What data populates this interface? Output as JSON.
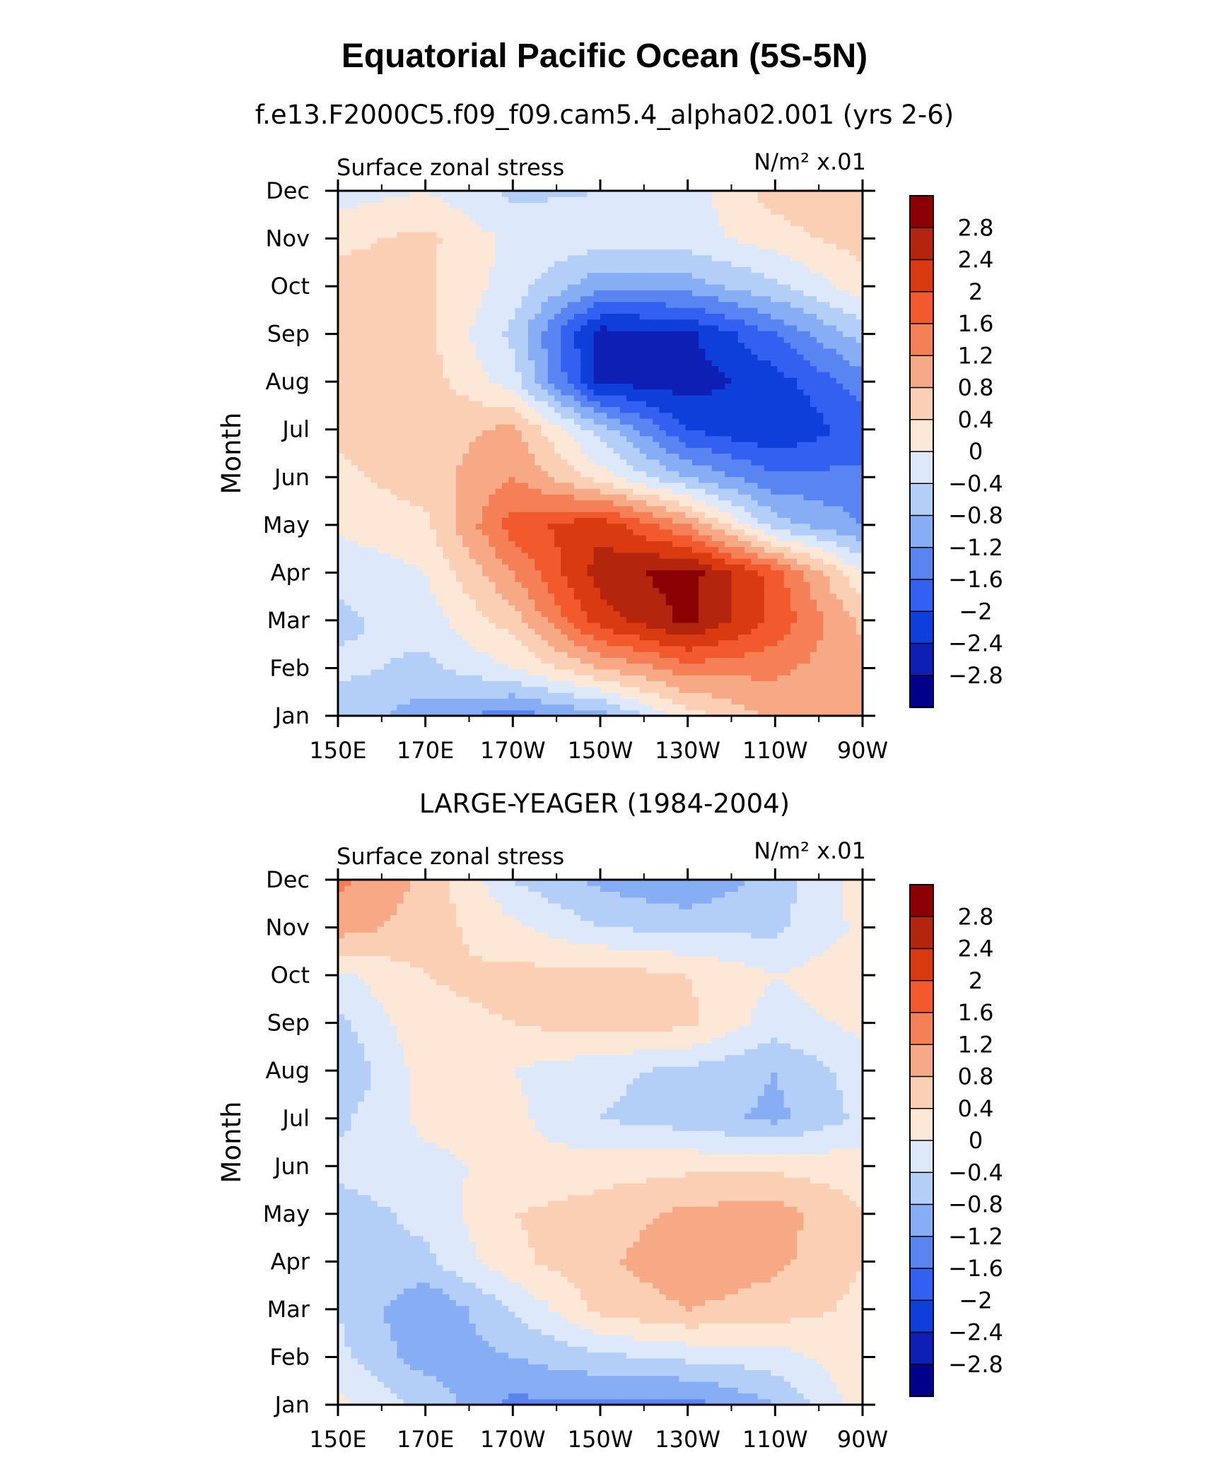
{
  "title": "Equatorial Pacific Ocean (5S-5N)",
  "colors": [
    "#00008b",
    "#0e1fb3",
    "#0f3fd9",
    "#3360f0",
    "#5985f2",
    "#87aef5",
    "#b3cef7",
    "#dde9fb",
    "#fde8d8",
    "#fbcfb3",
    "#f7a985",
    "#f58056",
    "#f2592d",
    "#d93a0f",
    "#b3250d",
    "#8b0000"
  ],
  "levels": [
    -2.8,
    -2.4,
    -2,
    -1.6,
    -1.2,
    -0.8,
    -0.4,
    0,
    0.4,
    0.8,
    1.2,
    1.6,
    2,
    2.4,
    2.8
  ],
  "chart_data": [
    {
      "type": "heatmap",
      "subtitle": "f.e13.F2000C5.f09_f09.cam5.4_alpha02.001 (yrs 2-6)",
      "left_label": "Surface zonal stress",
      "right_label": "N/m² x.01",
      "ylabel": "Month",
      "x_ticks": [
        "150E",
        "170E",
        "170W",
        "150W",
        "130W",
        "110W",
        "90W"
      ],
      "y_ticks": [
        "Jan",
        "Feb",
        "Mar",
        "Apr",
        "May",
        "Jun",
        "Jul",
        "Aug",
        "Sep",
        "Oct",
        "Nov",
        "Dec"
      ],
      "colorbar_labels": [
        "2.8",
        "2.4",
        "2",
        "1.6",
        "1.2",
        "0.8",
        "0.4",
        "0",
        "−0.4",
        "−0.8",
        "−1.2",
        "−1.6",
        "−2",
        "−2.4",
        "−2.8"
      ],
      "x": [
        "150E",
        "170E",
        "170W",
        "150W",
        "130W",
        "110W",
        "90W"
      ],
      "y": [
        "Jan",
        "Feb",
        "Mar",
        "Apr",
        "May",
        "Jun",
        "Jul",
        "Aug",
        "Sep",
        "Oct",
        "Nov",
        "Dec"
      ],
      "z": [
        [
          -0.6,
          -1.0,
          -1.4,
          -1.0,
          0.2,
          0.9,
          0.8
        ],
        [
          -0.3,
          -0.5,
          0.0,
          0.8,
          1.4,
          1.3,
          0.9
        ],
        [
          -0.5,
          -0.2,
          0.6,
          2.2,
          2.9,
          1.9,
          0.7
        ],
        [
          -0.3,
          0.0,
          1.2,
          2.6,
          3.0,
          1.8,
          0.0
        ],
        [
          0.1,
          0.3,
          1.8,
          2.3,
          1.2,
          -0.6,
          -1.2
        ],
        [
          0.3,
          0.6,
          1.2,
          0.2,
          -0.8,
          -1.5,
          -1.5
        ],
        [
          0.5,
          0.6,
          0.9,
          -0.6,
          -2.0,
          -2.4,
          -1.8
        ],
        [
          0.5,
          0.6,
          -0.2,
          -2.5,
          -2.6,
          -2.2,
          -1.4
        ],
        [
          0.5,
          0.5,
          -0.5,
          -2.6,
          -2.5,
          -1.6,
          -0.6
        ],
        [
          0.6,
          0.5,
          -0.2,
          -1.1,
          -1.0,
          -0.5,
          0.2
        ],
        [
          0.3,
          0.5,
          -0.1,
          -0.2,
          -0.2,
          0.2,
          0.6
        ],
        [
          -0.2,
          0.0,
          -0.5,
          -0.4,
          -0.2,
          0.6,
          0.8
        ]
      ]
    },
    {
      "type": "heatmap",
      "subtitle": "LARGE-YEAGER (1984-2004)",
      "left_label": "Surface zonal stress",
      "right_label": "N/m² x.01",
      "ylabel": "Month",
      "x_ticks": [
        "150E",
        "170E",
        "170W",
        "150W",
        "130W",
        "110W",
        "90W"
      ],
      "y_ticks": [
        "Jan",
        "Feb",
        "Mar",
        "Apr",
        "May",
        "Jun",
        "Jul",
        "Aug",
        "Sep",
        "Oct",
        "Nov",
        "Dec"
      ],
      "colorbar_labels": [
        "2.8",
        "2.4",
        "2",
        "1.6",
        "1.2",
        "0.8",
        "0.4",
        "0",
        "−0.4",
        "−0.8",
        "−1.2",
        "−1.6",
        "−2",
        "−2.4",
        "−2.8"
      ],
      "x": [
        "150E",
        "170E",
        "170W",
        "150W",
        "130W",
        "110W",
        "90W"
      ],
      "y": [
        "Jan",
        "Feb",
        "Mar",
        "Apr",
        "May",
        "Jun",
        "Jul",
        "Aug",
        "Sep",
        "Oct",
        "Nov",
        "Dec"
      ],
      "z": [
        [
          0.1,
          -0.5,
          -1.3,
          -1.3,
          -1.4,
          -0.8,
          0.2
        ],
        [
          -0.3,
          -1.0,
          -0.8,
          -0.5,
          -0.3,
          -0.2,
          0.3
        ],
        [
          -0.4,
          -1.2,
          -0.4,
          0.5,
          0.8,
          0.6,
          0.3
        ],
        [
          -0.4,
          -0.5,
          0.3,
          0.7,
          1.1,
          0.9,
          0.4
        ],
        [
          -0.6,
          -0.3,
          0.4,
          0.6,
          0.9,
          1.0,
          0.4
        ],
        [
          -0.3,
          -0.1,
          0.1,
          0.2,
          0.3,
          0.3,
          0.2
        ],
        [
          -0.5,
          0.1,
          0.1,
          -0.4,
          -0.6,
          -0.9,
          -0.3
        ],
        [
          -0.8,
          0.2,
          0.0,
          -0.3,
          -0.5,
          -0.8,
          -0.2
        ],
        [
          -0.5,
          0.3,
          0.4,
          0.6,
          0.5,
          -0.2,
          0.1
        ],
        [
          -0.1,
          0.4,
          0.5,
          0.6,
          0.4,
          0.0,
          0.3
        ],
        [
          1.0,
          0.6,
          0.1,
          -0.4,
          -0.5,
          -0.5,
          0.1
        ],
        [
          1.3,
          0.7,
          -0.4,
          -0.9,
          -1.2,
          -0.6,
          0.2
        ]
      ]
    }
  ]
}
